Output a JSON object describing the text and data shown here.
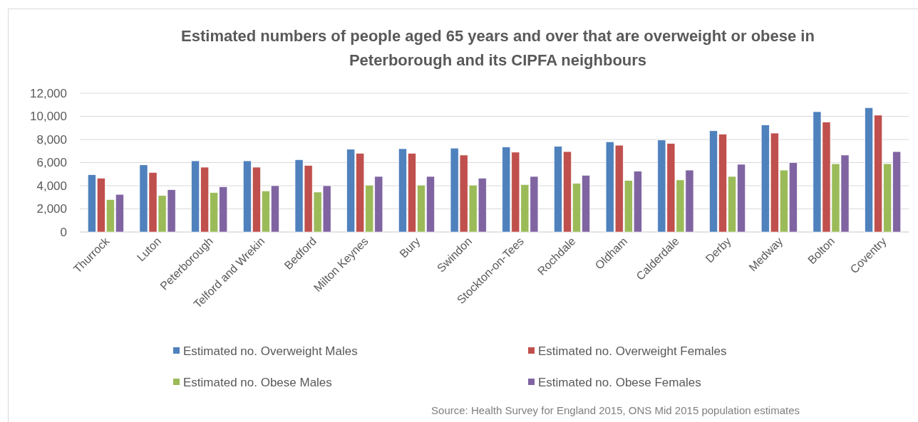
{
  "chart_data": {
    "type": "bar",
    "title": "Estimated numbers of people aged 65 years and over that are overweight or obese in Peterborough and its CIPFA neighbours",
    "categories": [
      "Thurrock",
      "Luton",
      "Peterborough",
      "Telford and Wrekin",
      "Bedford",
      "Milton Keynes",
      "Bury",
      "Swindon",
      "Stockton-on-Tees",
      "Rochdale",
      "Oldham",
      "Calderdale",
      "Derby",
      "Medway",
      "Bolton",
      "Coventry"
    ],
    "series": [
      {
        "name": "Estimated no. Overweight Males",
        "color": "#4f81bd",
        "values": [
          4950,
          5800,
          6150,
          6150,
          6250,
          7150,
          7200,
          7250,
          7350,
          7400,
          7800,
          7950,
          8750,
          9250,
          10400,
          10750
        ]
      },
      {
        "name": "Estimated no. Overweight Females",
        "color": "#c0504d",
        "values": [
          4650,
          5150,
          5600,
          5600,
          5750,
          6800,
          6800,
          6650,
          6900,
          6950,
          7500,
          7650,
          8450,
          8550,
          9500,
          10100
        ]
      },
      {
        "name": "Estimated no. Obese Males",
        "color": "#9bbb59",
        "values": [
          2800,
          3150,
          3400,
          3550,
          3450,
          4050,
          4050,
          4050,
          4100,
          4200,
          4450,
          4500,
          4800,
          5350,
          5900,
          5900
        ]
      },
      {
        "name": "Estimated no. Obese Females",
        "color": "#8064a2",
        "values": [
          3250,
          3650,
          3900,
          4000,
          4000,
          4800,
          4800,
          4650,
          4800,
          4900,
          5250,
          5350,
          5850,
          6000,
          6650,
          6950
        ]
      }
    ],
    "ylim": [
      0,
      12000
    ],
    "yticks": [
      0,
      {
        "value": 2000,
        "label": "2,000"
      },
      {
        "value": 4000,
        "label": "4,000"
      },
      {
        "value": 6000,
        "label": "6,000"
      },
      {
        "value": 8000,
        "label": "8,000"
      },
      {
        "value": 10000,
        "label": "10,000"
      },
      {
        "value": 12000,
        "label": "12,000"
      }
    ],
    "grid": "y",
    "legend": "bottom",
    "annotations": [
      "Source: Health Survey for England 2015, ONS Mid 2015 population estimates"
    ]
  }
}
